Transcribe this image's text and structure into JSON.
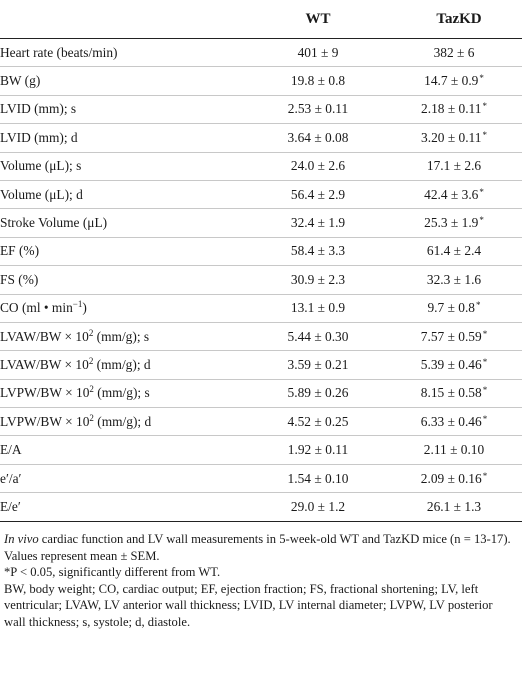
{
  "header": {
    "col0": "",
    "col1": "WT",
    "col2": "TazKD"
  },
  "rows": [
    {
      "label": "Heart rate (beats/min)",
      "wt": "401 ± 9",
      "kd": "382 ± 6",
      "kd_sig": ""
    },
    {
      "label": "BW (g)",
      "wt": "19.8 ± 0.8",
      "kd": "14.7 ± 0.9",
      "kd_sig": "*"
    },
    {
      "label": "LVID (mm); s",
      "wt": "2.53 ± 0.11",
      "kd": "2.18 ± 0.11",
      "kd_sig": "*"
    },
    {
      "label": "LVID (mm); d",
      "wt": "3.64 ± 0.08",
      "kd": "3.20 ± 0.11",
      "kd_sig": "*"
    },
    {
      "label": "Volume (μL); s",
      "wt": "24.0 ± 2.6",
      "kd": "17.1 ± 2.6",
      "kd_sig": ""
    },
    {
      "label": "Volume (μL); d",
      "wt": "56.4 ± 2.9",
      "kd": "42.4 ± 3.6",
      "kd_sig": "*"
    },
    {
      "label": "Stroke Volume (μL)",
      "wt": "32.4 ± 1.9",
      "kd": "25.3 ± 1.9",
      "kd_sig": "*"
    },
    {
      "label": "EF (%)",
      "wt": "58.4 ± 3.3",
      "kd": "61.4 ± 2.4",
      "kd_sig": ""
    },
    {
      "label": "FS (%)",
      "wt": "30.9 ± 2.3",
      "kd": "32.3 ± 1.6",
      "kd_sig": ""
    },
    {
      "label_pre": "CO (ml • min",
      "label_sup": "−1",
      "label_post": ")",
      "wt": "13.1 ± 0.9",
      "kd": "9.7 ± 0.8",
      "kd_sig": "*"
    },
    {
      "label_pre": "LVAW/BW × 10",
      "label_sup": "2",
      "label_post": " (mm/g); s",
      "wt": "5.44 ± 0.30",
      "kd": "7.57 ± 0.59",
      "kd_sig": "*"
    },
    {
      "label_pre": "LVAW/BW × 10",
      "label_sup": "2",
      "label_post": " (mm/g); d",
      "wt": "3.59 ± 0.21",
      "kd": "5.39 ± 0.46",
      "kd_sig": "*"
    },
    {
      "label_pre": "LVPW/BW × 10",
      "label_sup": "2",
      "label_post": " (mm/g); s",
      "wt": "5.89 ± 0.26",
      "kd": "8.15 ± 0.58",
      "kd_sig": "*"
    },
    {
      "label_pre": "LVPW/BW × 10",
      "label_sup": "2",
      "label_post": " (mm/g); d",
      "wt": "4.52 ± 0.25",
      "kd": "6.33 ± 0.46",
      "kd_sig": "*"
    },
    {
      "label": "E/A",
      "wt": "1.92 ± 0.11",
      "kd": "2.11 ± 0.10",
      "kd_sig": ""
    },
    {
      "label": "e′/a′",
      "wt": "1.54 ± 0.10",
      "kd": "2.09 ± 0.16",
      "kd_sig": "*"
    },
    {
      "label": "E/e′",
      "wt": "29.0 ± 1.2",
      "kd": "26.1 ± 1.3",
      "kd_sig": ""
    }
  ],
  "notes": {
    "caption_italic": "In vivo",
    "caption_rest": " cardiac function and LV wall measurements in 5-week-old WT and TazKD mice (n = 13-17). Values represent mean ± SEM.",
    "significance": "*P < 0.05, significantly different from WT.",
    "abbreviations": "BW, body weight; CO, cardiac output; EF, ejection fraction; FS, fractional shortening; LV, left ventricular; LVAW, LV anterior wall thickness; LVID, LV internal diameter; LVPW, LV posterior wall thickness; s, systole; d, diastole."
  }
}
